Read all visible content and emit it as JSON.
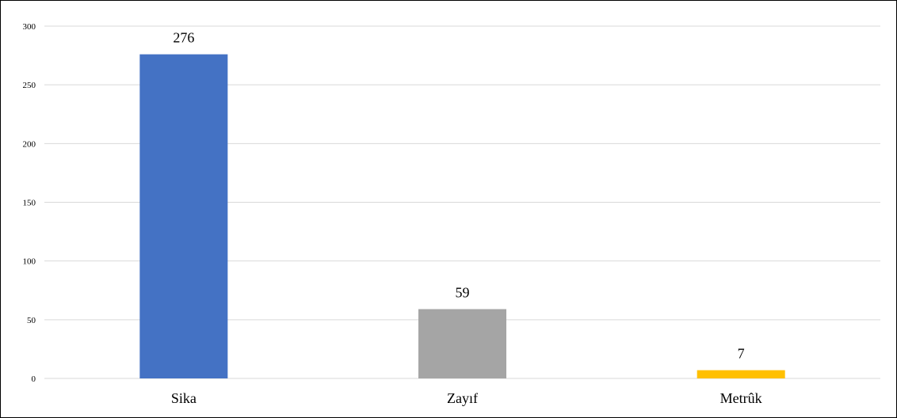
{
  "chart_data": {
    "type": "bar",
    "categories": [
      "Sika",
      "Zayıf",
      "Metrûk"
    ],
    "values": [
      276,
      59,
      7
    ],
    "data_labels": [
      "276",
      "59",
      "7"
    ],
    "colors": [
      "#4472C4",
      "#A5A5A5",
      "#FFC000"
    ],
    "title": "",
    "xlabel": "",
    "ylabel": "",
    "ylim": [
      0,
      300
    ],
    "yticks": [
      0,
      50,
      100,
      150,
      200,
      250,
      300
    ],
    "grid": true,
    "legend": "none"
  }
}
